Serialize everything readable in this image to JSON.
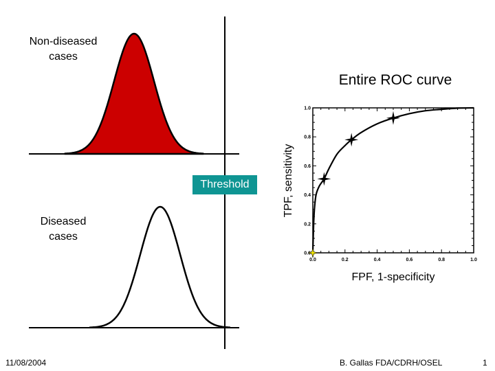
{
  "labels": {
    "non_diseased": "Non-diseased cases",
    "diseased": "Diseased cases",
    "threshold": "Threshold",
    "roc_title": "Entire ROC curve"
  },
  "colors": {
    "non_diseased_fill": "#cc0000",
    "threshold_bg": "#0f9593",
    "origin_marker": "#f2e600"
  },
  "chart_data": {
    "type": "line",
    "title": "Entire ROC curve",
    "xlabel": "FPF, 1-specificity",
    "ylabel": "TPF, sensitivity",
    "xlim": [
      0,
      1
    ],
    "ylim": [
      0,
      1
    ],
    "x_ticks": [
      "0.0",
      "0.2",
      "0.4",
      "0.6",
      "0.8",
      "1.0"
    ],
    "y_ticks": [
      "0.0",
      "0.2",
      "0.4",
      "0.6",
      "0.8",
      "1.0"
    ],
    "curve": {
      "x": [
        0,
        0.005,
        0.01,
        0.02,
        0.04,
        0.07,
        0.1,
        0.15,
        0.2,
        0.24,
        0.3,
        0.4,
        0.5,
        0.6,
        0.7,
        0.8,
        0.9,
        1.0
      ],
      "y": [
        0,
        0.2,
        0.3,
        0.4,
        0.46,
        0.51,
        0.58,
        0.68,
        0.74,
        0.78,
        0.83,
        0.89,
        0.93,
        0.96,
        0.98,
        0.99,
        0.998,
        1.0
      ]
    },
    "markers": [
      {
        "x": 0.07,
        "y": 0.51
      },
      {
        "x": 0.24,
        "y": 0.78
      },
      {
        "x": 0.5,
        "y": 0.93
      }
    ],
    "origin_marker": {
      "x": 0,
      "y": 0
    }
  },
  "footer": {
    "date": "11/08/2004",
    "author": "B. Gallas FDA/CDRH/OSEL",
    "page": "1"
  }
}
